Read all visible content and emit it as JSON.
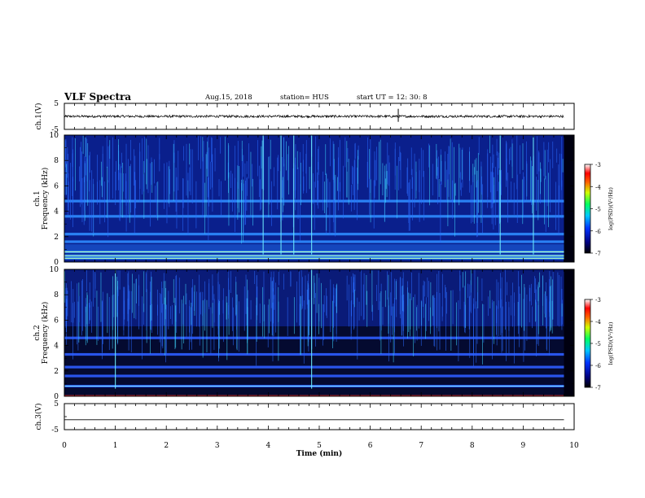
{
  "header": {
    "title": "VLF Spectra",
    "date": "Aug.15, 2018",
    "station": "station= HUS",
    "start_ut": "start  UT =   12: 30: 8"
  },
  "chart_data": [
    {
      "type": "line",
      "name": "ch1-waveform",
      "ylabel": "ch.1(V)",
      "ylim": [
        -5,
        5
      ],
      "yticks": [
        "5",
        "-5"
      ],
      "xlim": [
        0,
        10
      ],
      "x": [
        0,
        9.8
      ],
      "y": [
        0,
        0
      ],
      "noise_amplitude_v": 0.45
    },
    {
      "type": "heatmap",
      "name": "ch1-spectrogram",
      "ylabel": "ch.1\nFrequency (kHz)",
      "ylim": [
        0,
        10
      ],
      "yticks": [
        "0",
        "2",
        "4",
        "6",
        "8",
        "10"
      ],
      "xlim": [
        0,
        10
      ],
      "x_data_end": 9.8,
      "colorbar": {
        "label": "log(PSD)(V²/Hz)",
        "range": [
          -7,
          -3
        ],
        "ticks": [
          "-3",
          "-4",
          "-5",
          "-6",
          "-7"
        ]
      },
      "bands_khz": [
        0.3,
        0.5,
        0.8,
        1.6,
        2.2,
        3.6,
        4.8
      ],
      "bursts_min": [
        3.9,
        4.25,
        4.5,
        4.85,
        8.55,
        9.2
      ]
    },
    {
      "type": "heatmap",
      "name": "ch2-spectrogram",
      "ylabel": "ch.2\nFrequency (kHz)",
      "ylim": [
        0,
        10
      ],
      "yticks": [
        "0",
        "2",
        "4",
        "6",
        "8",
        "10"
      ],
      "xlim": [
        0,
        10
      ],
      "x_data_end": 9.8,
      "colorbar": {
        "label": "log(PSD)(V²/Hz)",
        "range": [
          -7,
          -3
        ],
        "ticks": [
          "-3",
          "-4",
          "-5",
          "-6",
          "-7"
        ]
      },
      "bands_khz": [
        0.8,
        1.6,
        2.3,
        3.3,
        4.6
      ],
      "bursts_min": [
        1.0,
        4.85
      ]
    },
    {
      "type": "line",
      "name": "ch3-waveform",
      "ylabel": "ch.3(V)",
      "ylim": [
        -5,
        5
      ],
      "yticks": [
        "5",
        "-5"
      ],
      "xlim": [
        0,
        10
      ],
      "x": [
        0,
        9.8
      ],
      "y": [
        -1.2,
        -1.2
      ],
      "xlabel": "Time (min)",
      "xticks": [
        "0",
        "1",
        "2",
        "3",
        "4",
        "5",
        "6",
        "7",
        "8",
        "9",
        "10"
      ]
    }
  ]
}
